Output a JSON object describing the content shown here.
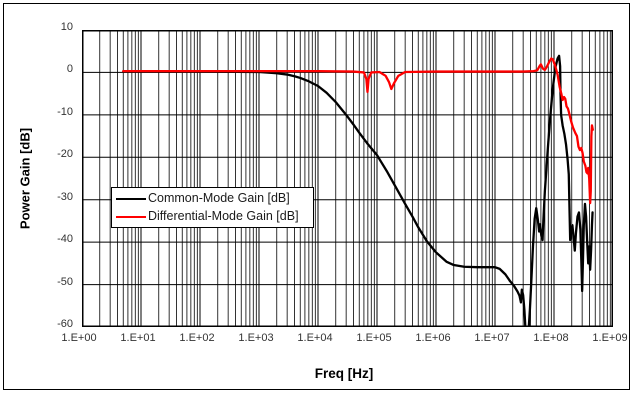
{
  "axis": {
    "y_title": "Power Gain [dB]",
    "x_title": "Freq [Hz]",
    "y_tick_labels": [
      "10",
      "0",
      "-10",
      "-20",
      "-30",
      "-40",
      "-50",
      "-60"
    ],
    "x_tick_labels": [
      "1.E+00",
      "1.E+01",
      "1.E+02",
      "1.E+03",
      "1.E+04",
      "1.E+05",
      "1.E+06",
      "1.E+07",
      "1.E+08",
      "1.E+09"
    ]
  },
  "chart_data": {
    "type": "line",
    "title": "",
    "xlabel": "Freq [Hz]",
    "ylabel": "Power Gain [dB]",
    "x_scale": "log",
    "xlim": [
      1,
      1000000000
    ],
    "ylim": [
      -60,
      10
    ],
    "y_tick_step": 10,
    "grid": "major-and-minor, black, full log grid",
    "legend_position": "inside-left-middle",
    "frame_color": "#000000",
    "background": "#ffffff",
    "series": [
      {
        "name": "Common-Mode Gain [dB]",
        "color": "#000000",
        "points": [
          [
            5,
            0.2
          ],
          [
            10,
            0.2
          ],
          [
            100,
            0.2
          ],
          [
            1000,
            0.1
          ],
          [
            2000,
            -0.2
          ],
          [
            3000,
            -0.5
          ],
          [
            4000,
            -0.9
          ],
          [
            5000,
            -1.3
          ],
          [
            7000,
            -2.1
          ],
          [
            10000,
            -3.2
          ],
          [
            14000,
            -4.8
          ],
          [
            20000,
            -7.0
          ],
          [
            30000,
            -10.0
          ],
          [
            40000,
            -12.3
          ],
          [
            50000,
            -14.2
          ],
          [
            70000,
            -16.9
          ],
          [
            100000,
            -19.5
          ],
          [
            150000,
            -23.5
          ],
          [
            200000,
            -26.6
          ],
          [
            300000,
            -31.0
          ],
          [
            400000,
            -34.0
          ],
          [
            500000,
            -36.5
          ],
          [
            700000,
            -39.8
          ],
          [
            1000000,
            -42.4
          ],
          [
            1500000,
            -44.6
          ],
          [
            2000000,
            -45.4
          ],
          [
            3000000,
            -45.8
          ],
          [
            5000000,
            -45.9
          ],
          [
            7000000,
            -45.9
          ],
          [
            10000000,
            -45.9
          ],
          [
            12000000,
            -46.3
          ],
          [
            15000000,
            -47.6
          ],
          [
            18000000,
            -49.2
          ],
          [
            21000000,
            -50.3
          ],
          [
            24000000,
            -51.6
          ],
          [
            26000000,
            -52.6
          ],
          [
            27500000,
            -54.2
          ],
          [
            28500000,
            -51.2
          ],
          [
            30000000,
            -52.5
          ],
          [
            31500000,
            -56.0
          ],
          [
            33000000,
            -61.0
          ],
          [
            35000000,
            -63.0
          ],
          [
            37000000,
            -61.0
          ],
          [
            39000000,
            -56.0
          ],
          [
            41000000,
            -50.0
          ],
          [
            44000000,
            -41.0
          ],
          [
            47000000,
            -34.5
          ],
          [
            50000000,
            -32.0
          ],
          [
            53000000,
            -34.5
          ],
          [
            56000000,
            -37.5
          ],
          [
            58000000,
            -35.8
          ],
          [
            61000000,
            -38.5
          ],
          [
            64000000,
            -39.5
          ],
          [
            66000000,
            -35.0
          ],
          [
            70000000,
            -28.0
          ],
          [
            75000000,
            -22.0
          ],
          [
            80000000,
            -16.5
          ],
          [
            87000000,
            -10.0
          ],
          [
            95000000,
            -4.0
          ],
          [
            105000000,
            1.0
          ],
          [
            115000000,
            3.3
          ],
          [
            122000000,
            3.9
          ],
          [
            127000000,
            1.5
          ],
          [
            129000000,
            -5.0
          ],
          [
            132000000,
            -10.0
          ],
          [
            140000000,
            -12.5
          ],
          [
            150000000,
            -14.5
          ],
          [
            160000000,
            -17.0
          ],
          [
            170000000,
            -20.5
          ],
          [
            178000000,
            -24.0
          ],
          [
            183000000,
            -32.0
          ],
          [
            188000000,
            -39.5
          ],
          [
            195000000,
            -37.5
          ],
          [
            205000000,
            -36.0
          ],
          [
            215000000,
            -39.0
          ],
          [
            225000000,
            -42.0
          ],
          [
            235000000,
            -38.0
          ],
          [
            250000000,
            -34.0
          ],
          [
            265000000,
            -33.0
          ],
          [
            280000000,
            -37.0
          ],
          [
            290000000,
            -44.0
          ],
          [
            300000000,
            -51.5
          ],
          [
            310000000,
            -44.0
          ],
          [
            320000000,
            -36.0
          ],
          [
            335000000,
            -31.0
          ],
          [
            350000000,
            -34.0
          ],
          [
            365000000,
            -40.0
          ],
          [
            380000000,
            -45.0
          ],
          [
            395000000,
            -41.0
          ],
          [
            410000000,
            -46.5
          ],
          [
            425000000,
            -42.0
          ],
          [
            440000000,
            -36.0
          ],
          [
            450000000,
            -33.0
          ]
        ]
      },
      {
        "name": "Differential-Mode Gain [dB]",
        "color": "#FF0000",
        "points": [
          [
            5,
            0.3
          ],
          [
            10,
            0.3
          ],
          [
            1000,
            0.3
          ],
          [
            10000,
            0.3
          ],
          [
            40000,
            0.2
          ],
          [
            60000,
            0.0
          ],
          [
            66000,
            -1.5
          ],
          [
            69000,
            -4.6
          ],
          [
            72000,
            -1.5
          ],
          [
            80000,
            0.0
          ],
          [
            110000,
            0.1
          ],
          [
            140000,
            -0.8
          ],
          [
            160000,
            -2.3
          ],
          [
            175000,
            -3.9
          ],
          [
            195000,
            -2.5
          ],
          [
            230000,
            -0.8
          ],
          [
            300000,
            0.1
          ],
          [
            1000000,
            0.2
          ],
          [
            10000000,
            0.2
          ],
          [
            30000000,
            0.2
          ],
          [
            45000000,
            0.3
          ],
          [
            52000000,
            0.5
          ],
          [
            57000000,
            1.5
          ],
          [
            60000000,
            1.9
          ],
          [
            65000000,
            0.9
          ],
          [
            70000000,
            0.6
          ],
          [
            76000000,
            1.4
          ],
          [
            83000000,
            2.5
          ],
          [
            90000000,
            3.3
          ],
          [
            96000000,
            3.0
          ],
          [
            105000000,
            1.5
          ],
          [
            115000000,
            -0.5
          ],
          [
            125000000,
            -3.5
          ],
          [
            133000000,
            -5.0
          ],
          [
            140000000,
            -6.5
          ],
          [
            148000000,
            -5.8
          ],
          [
            155000000,
            -6.2
          ],
          [
            163000000,
            -8.0
          ],
          [
            172000000,
            -8.5
          ],
          [
            180000000,
            -9.5
          ],
          [
            195000000,
            -11.5
          ],
          [
            210000000,
            -13.0
          ],
          [
            230000000,
            -14.3
          ],
          [
            245000000,
            -15.0
          ],
          [
            260000000,
            -17.5
          ],
          [
            275000000,
            -18.3
          ],
          [
            290000000,
            -17.8
          ],
          [
            305000000,
            -19.0
          ],
          [
            320000000,
            -21.0
          ],
          [
            340000000,
            -22.0
          ],
          [
            355000000,
            -23.5
          ],
          [
            370000000,
            -23.8
          ],
          [
            380000000,
            -22.5
          ],
          [
            395000000,
            -25.0
          ],
          [
            410000000,
            -30.8
          ],
          [
            420000000,
            -28.0
          ],
          [
            430000000,
            -15.0
          ],
          [
            440000000,
            -12.5
          ],
          [
            455000000,
            -13.5
          ]
        ]
      }
    ]
  }
}
